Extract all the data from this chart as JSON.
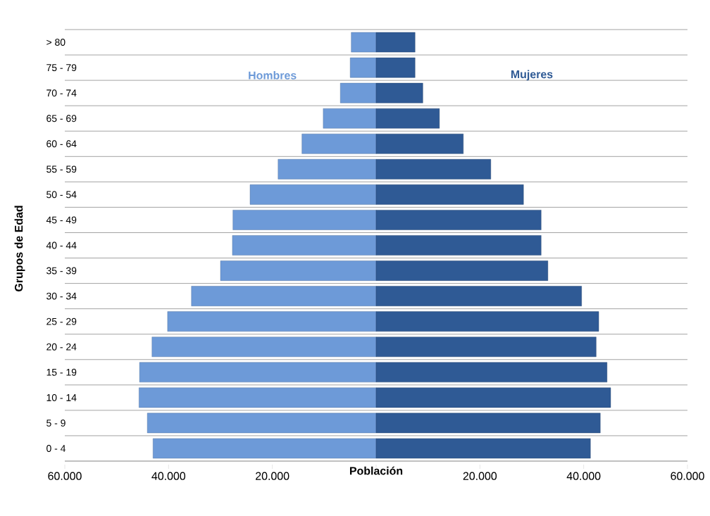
{
  "chart_data": {
    "type": "bar",
    "orientation": "horizontal",
    "stacked": true,
    "xlabel": "Población",
    "ylabel": "Grupos de Edad",
    "categories": [
      "> 80",
      "75 - 79",
      "70 - 74",
      "65 - 69",
      "60 - 64",
      "55 - 59",
      "50 - 54",
      "45 - 49",
      "40 - 44",
      "35 - 39",
      "30 - 34",
      "25 - 29",
      "20 - 24",
      "15 - 19",
      "10 - 14",
      "5 - 9",
      "0 - 4"
    ],
    "series": [
      {
        "name": "Hombres",
        "color": "#6d9ad8",
        "values": [
          -4800,
          -5000,
          -6900,
          -10200,
          -14300,
          -18900,
          -24300,
          -27600,
          -27700,
          -30000,
          -35600,
          -40200,
          -43200,
          -45600,
          -45700,
          -44100,
          -43000
        ]
      },
      {
        "name": "Mujeres",
        "color": "#2f5a95",
        "values": [
          7500,
          7500,
          9000,
          12200,
          16800,
          22100,
          28400,
          31800,
          31800,
          33100,
          39600,
          42900,
          42400,
          44500,
          45200,
          43200,
          41300
        ]
      }
    ],
    "xlim": [
      -60000,
      60000
    ],
    "xticks": [
      {
        "value": -60000,
        "label": "60.000"
      },
      {
        "value": -40000,
        "label": "40.000"
      },
      {
        "value": -20000,
        "label": "20.000"
      },
      {
        "value": 0,
        "label": null
      },
      {
        "value": 20000,
        "label": "20.000"
      },
      {
        "value": 40000,
        "label": "40.000"
      },
      {
        "value": 60000,
        "label": "60.000"
      }
    ],
    "grid": "y",
    "legend": false
  }
}
